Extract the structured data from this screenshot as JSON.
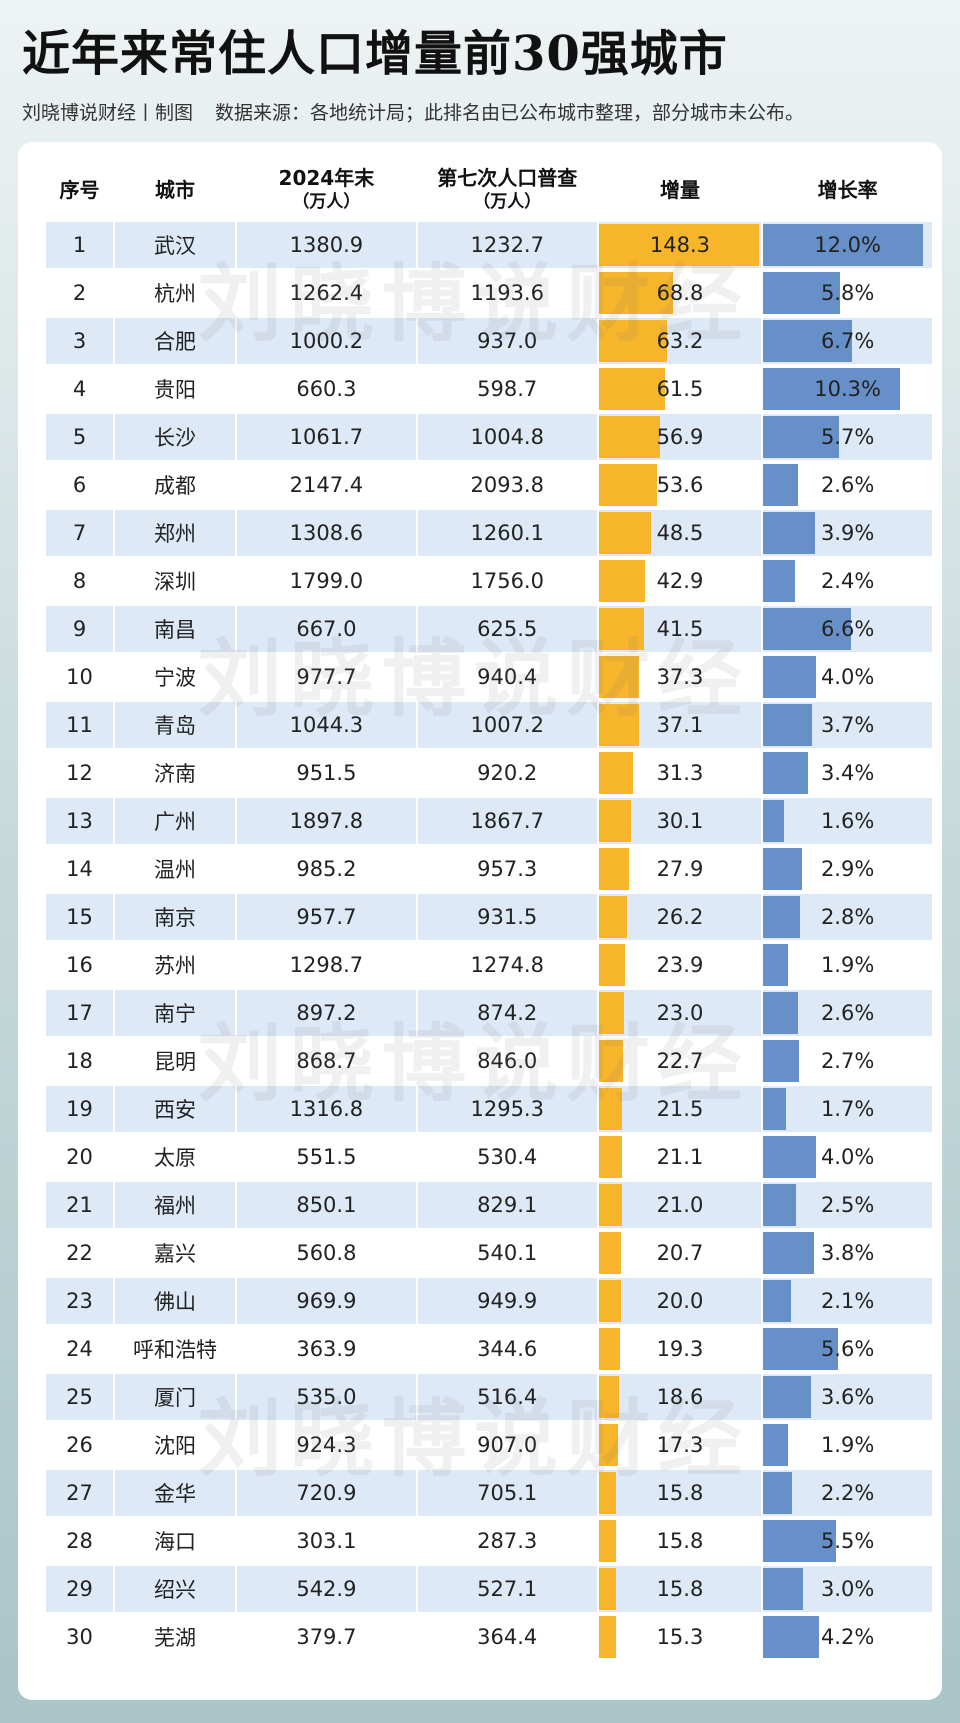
{
  "header": {
    "title": "近年来常住人口增量前30强城市",
    "credit": "刘晓博说财经丨制图",
    "source": "数据来源：各地统计局；此排名由已公布城市整理，部分城市未公布。"
  },
  "watermark": "刘晓博说财经",
  "columns": {
    "rank": "序号",
    "city": "城市",
    "pop2024": "2024年末",
    "pop2024_unit": "（万人）",
    "census": "第七次人口普查",
    "census_unit": "（万人）",
    "increase": "增量",
    "rate": "增长率"
  },
  "colors": {
    "increase_bar": "#f7b52b",
    "rate_bar": "#6690c7",
    "row_band": "#dde9f6"
  },
  "chart_data": {
    "type": "table",
    "increase_max": 148.3,
    "rate_max": 12.0,
    "rows": [
      {
        "rank": "1",
        "city": "武汉",
        "pop2024": "1380.9",
        "census": "1232.7",
        "increase": "148.3",
        "rate": "12.0%",
        "inc_v": 148.3,
        "rate_v": 12.0
      },
      {
        "rank": "2",
        "city": "杭州",
        "pop2024": "1262.4",
        "census": "1193.6",
        "increase": "68.8",
        "rate": "5.8%",
        "inc_v": 68.8,
        "rate_v": 5.8
      },
      {
        "rank": "3",
        "city": "合肥",
        "pop2024": "1000.2",
        "census": "937.0",
        "increase": "63.2",
        "rate": "6.7%",
        "inc_v": 63.2,
        "rate_v": 6.7
      },
      {
        "rank": "4",
        "city": "贵阳",
        "pop2024": "660.3",
        "census": "598.7",
        "increase": "61.5",
        "rate": "10.3%",
        "inc_v": 61.5,
        "rate_v": 10.3
      },
      {
        "rank": "5",
        "city": "长沙",
        "pop2024": "1061.7",
        "census": "1004.8",
        "increase": "56.9",
        "rate": "5.7%",
        "inc_v": 56.9,
        "rate_v": 5.7
      },
      {
        "rank": "6",
        "city": "成都",
        "pop2024": "2147.4",
        "census": "2093.8",
        "increase": "53.6",
        "rate": "2.6%",
        "inc_v": 53.6,
        "rate_v": 2.6
      },
      {
        "rank": "7",
        "city": "郑州",
        "pop2024": "1308.6",
        "census": "1260.1",
        "increase": "48.5",
        "rate": "3.9%",
        "inc_v": 48.5,
        "rate_v": 3.9
      },
      {
        "rank": "8",
        "city": "深圳",
        "pop2024": "1799.0",
        "census": "1756.0",
        "increase": "42.9",
        "rate": "2.4%",
        "inc_v": 42.9,
        "rate_v": 2.4
      },
      {
        "rank": "9",
        "city": "南昌",
        "pop2024": "667.0",
        "census": "625.5",
        "increase": "41.5",
        "rate": "6.6%",
        "inc_v": 41.5,
        "rate_v": 6.6
      },
      {
        "rank": "10",
        "city": "宁波",
        "pop2024": "977.7",
        "census": "940.4",
        "increase": "37.3",
        "rate": "4.0%",
        "inc_v": 37.3,
        "rate_v": 4.0
      },
      {
        "rank": "11",
        "city": "青岛",
        "pop2024": "1044.3",
        "census": "1007.2",
        "increase": "37.1",
        "rate": "3.7%",
        "inc_v": 37.1,
        "rate_v": 3.7
      },
      {
        "rank": "12",
        "city": "济南",
        "pop2024": "951.5",
        "census": "920.2",
        "increase": "31.3",
        "rate": "3.4%",
        "inc_v": 31.3,
        "rate_v": 3.4
      },
      {
        "rank": "13",
        "city": "广州",
        "pop2024": "1897.8",
        "census": "1867.7",
        "increase": "30.1",
        "rate": "1.6%",
        "inc_v": 30.1,
        "rate_v": 1.6
      },
      {
        "rank": "14",
        "city": "温州",
        "pop2024": "985.2",
        "census": "957.3",
        "increase": "27.9",
        "rate": "2.9%",
        "inc_v": 27.9,
        "rate_v": 2.9
      },
      {
        "rank": "15",
        "city": "南京",
        "pop2024": "957.7",
        "census": "931.5",
        "increase": "26.2",
        "rate": "2.8%",
        "inc_v": 26.2,
        "rate_v": 2.8
      },
      {
        "rank": "16",
        "city": "苏州",
        "pop2024": "1298.7",
        "census": "1274.8",
        "increase": "23.9",
        "rate": "1.9%",
        "inc_v": 23.9,
        "rate_v": 1.9
      },
      {
        "rank": "17",
        "city": "南宁",
        "pop2024": "897.2",
        "census": "874.2",
        "increase": "23.0",
        "rate": "2.6%",
        "inc_v": 23.0,
        "rate_v": 2.6
      },
      {
        "rank": "18",
        "city": "昆明",
        "pop2024": "868.7",
        "census": "846.0",
        "increase": "22.7",
        "rate": "2.7%",
        "inc_v": 22.7,
        "rate_v": 2.7
      },
      {
        "rank": "19",
        "city": "西安",
        "pop2024": "1316.8",
        "census": "1295.3",
        "increase": "21.5",
        "rate": "1.7%",
        "inc_v": 21.5,
        "rate_v": 1.7
      },
      {
        "rank": "20",
        "city": "太原",
        "pop2024": "551.5",
        "census": "530.4",
        "increase": "21.1",
        "rate": "4.0%",
        "inc_v": 21.1,
        "rate_v": 4.0
      },
      {
        "rank": "21",
        "city": "福州",
        "pop2024": "850.1",
        "census": "829.1",
        "increase": "21.0",
        "rate": "2.5%",
        "inc_v": 21.0,
        "rate_v": 2.5
      },
      {
        "rank": "22",
        "city": "嘉兴",
        "pop2024": "560.8",
        "census": "540.1",
        "increase": "20.7",
        "rate": "3.8%",
        "inc_v": 20.7,
        "rate_v": 3.8
      },
      {
        "rank": "23",
        "city": "佛山",
        "pop2024": "969.9",
        "census": "949.9",
        "increase": "20.0",
        "rate": "2.1%",
        "inc_v": 20.0,
        "rate_v": 2.1
      },
      {
        "rank": "24",
        "city": "呼和浩特",
        "pop2024": "363.9",
        "census": "344.6",
        "increase": "19.3",
        "rate": "5.6%",
        "inc_v": 19.3,
        "rate_v": 5.6
      },
      {
        "rank": "25",
        "city": "厦门",
        "pop2024": "535.0",
        "census": "516.4",
        "increase": "18.6",
        "rate": "3.6%",
        "inc_v": 18.6,
        "rate_v": 3.6
      },
      {
        "rank": "26",
        "city": "沈阳",
        "pop2024": "924.3",
        "census": "907.0",
        "increase": "17.3",
        "rate": "1.9%",
        "inc_v": 17.3,
        "rate_v": 1.9
      },
      {
        "rank": "27",
        "city": "金华",
        "pop2024": "720.9",
        "census": "705.1",
        "increase": "15.8",
        "rate": "2.2%",
        "inc_v": 15.8,
        "rate_v": 2.2
      },
      {
        "rank": "28",
        "city": "海口",
        "pop2024": "303.1",
        "census": "287.3",
        "increase": "15.8",
        "rate": "5.5%",
        "inc_v": 15.8,
        "rate_v": 5.5
      },
      {
        "rank": "29",
        "city": "绍兴",
        "pop2024": "542.9",
        "census": "527.1",
        "increase": "15.8",
        "rate": "3.0%",
        "inc_v": 15.8,
        "rate_v": 3.0
      },
      {
        "rank": "30",
        "city": "芜湖",
        "pop2024": "379.7",
        "census": "364.4",
        "increase": "15.3",
        "rate": "4.2%",
        "inc_v": 15.3,
        "rate_v": 4.2
      }
    ]
  }
}
